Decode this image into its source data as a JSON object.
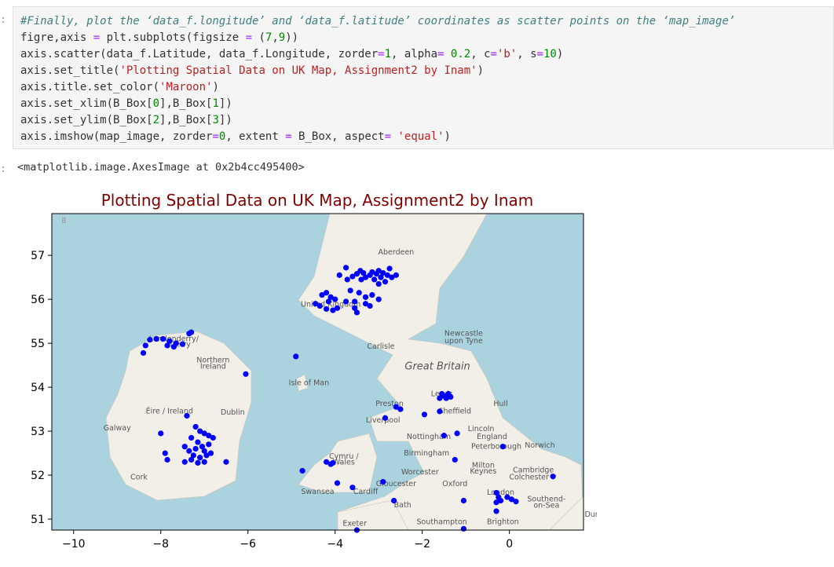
{
  "input_prompt": ":",
  "code_lines": [
    "#Finally, plot the ‘data_f.longitude’ and ‘data_f.latitude’ coordinates as scatter points on the ‘map_image’",
    "figre,axis = plt.subplots(figsize = (7,9))",
    "axis.scatter(data_f.Latitude, data_f.Longitude, zorder=1, alpha= 0.2, c='b', s=10)",
    "axis.set_title('Plotting Spatial Data on UK Map, Assignment2 by Inam')",
    "axis.title.set_color('Maroon')",
    "axis.set_xlim(B_Box[0],B_Box[1])",
    "axis.set_ylim(B_Box[2],B_Box[3])",
    "axis.imshow(map_image, zorder=0, extent = B_Box, aspect= 'equal')"
  ],
  "output_prompt": ":",
  "output_text": "<matplotlib.image.AxesImage at 0x2b4cc495400>",
  "colors": {
    "title": "#800000",
    "points": "#0000ff",
    "sea": "#aad3df",
    "land": "#f2efe9"
  },
  "map_labels": [
    {
      "text": "Aberdeen",
      "lon": -2.6,
      "lat": 57.02
    },
    {
      "text": "United Kingdom",
      "lon": -4.1,
      "lat": 55.83
    },
    {
      "text": "Newcastle",
      "lon": -1.05,
      "lat": 55.17
    },
    {
      "text": "upon Tyne",
      "lon": -1.05,
      "lat": 55.0
    },
    {
      "text": "Carlisle",
      "lon": -2.95,
      "lat": 54.88
    },
    {
      "text": "Londonderry/",
      "lon": -7.7,
      "lat": 55.05
    },
    {
      "text": "Derry",
      "lon": -7.55,
      "lat": 54.92
    },
    {
      "text": "Northern",
      "lon": -6.8,
      "lat": 54.56
    },
    {
      "text": "Ireland",
      "lon": -6.8,
      "lat": 54.42
    },
    {
      "text": "Great Britain",
      "lon": -1.65,
      "lat": 54.4
    },
    {
      "text": "Isle of Man",
      "lon": -4.6,
      "lat": 54.05
    },
    {
      "text": "Leeds",
      "lon": -1.55,
      "lat": 53.8
    },
    {
      "text": "Preston",
      "lon": -2.75,
      "lat": 53.57
    },
    {
      "text": "Sheffield",
      "lon": -1.25,
      "lat": 53.4
    },
    {
      "text": "Hull",
      "lon": -0.2,
      "lat": 53.57
    },
    {
      "text": "Éire / Ireland",
      "lon": -7.8,
      "lat": 53.4
    },
    {
      "text": "Dublin",
      "lon": -6.35,
      "lat": 53.38
    },
    {
      "text": "Liverpool",
      "lon": -2.9,
      "lat": 53.2
    },
    {
      "text": "Galway",
      "lon": -9.0,
      "lat": 53.02
    },
    {
      "text": "Lincoln",
      "lon": -0.65,
      "lat": 53.0
    },
    {
      "text": "Nottingham",
      "lon": -1.85,
      "lat": 52.82
    },
    {
      "text": "England",
      "lon": -0.4,
      "lat": 52.82
    },
    {
      "text": "Birmingham",
      "lon": -1.9,
      "lat": 52.45
    },
    {
      "text": "Peterborough",
      "lon": -0.3,
      "lat": 52.6
    },
    {
      "text": "Cymru /",
      "lon": -3.8,
      "lat": 52.38
    },
    {
      "text": "Wales",
      "lon": -3.8,
      "lat": 52.24
    },
    {
      "text": "Norwich",
      "lon": 0.7,
      "lat": 52.63
    },
    {
      "text": "Milton",
      "lon": -0.6,
      "lat": 52.17
    },
    {
      "text": "Keynes",
      "lon": -0.6,
      "lat": 52.04
    },
    {
      "text": "Cork",
      "lon": -8.5,
      "lat": 51.9
    },
    {
      "text": "Worcester",
      "lon": -2.05,
      "lat": 52.02
    },
    {
      "text": "Cambridge",
      "lon": 0.55,
      "lat": 52.06
    },
    {
      "text": "Colchester",
      "lon": 0.45,
      "lat": 51.9
    },
    {
      "text": "Gloucester",
      "lon": -2.6,
      "lat": 51.75
    },
    {
      "text": "Oxford",
      "lon": -1.25,
      "lat": 51.75
    },
    {
      "text": "Swansea",
      "lon": -4.4,
      "lat": 51.57
    },
    {
      "text": "Cardiff",
      "lon": -3.3,
      "lat": 51.57
    },
    {
      "text": "London",
      "lon": -0.2,
      "lat": 51.55
    },
    {
      "text": "Southend-",
      "lon": 0.85,
      "lat": 51.4
    },
    {
      "text": "on-Sea",
      "lon": 0.85,
      "lat": 51.26
    },
    {
      "text": "Bath",
      "lon": -2.45,
      "lat": 51.27
    },
    {
      "text": "Exeter",
      "lon": -3.55,
      "lat": 50.85
    },
    {
      "text": "Southampton",
      "lon": -1.55,
      "lat": 50.88
    },
    {
      "text": "Brighton",
      "lon": -0.15,
      "lat": 50.88
    },
    {
      "text": "Dunk",
      "lon": 1.95,
      "lat": 51.05
    }
  ],
  "chart_data": {
    "type": "scatter",
    "title": "Plotting Spatial Data on UK Map, Assignment2 by Inam",
    "title_color": "Maroon",
    "xlim": [
      -10.5,
      1.7
    ],
    "ylim": [
      50.75,
      57.95
    ],
    "x_ticks": [
      -10,
      -8,
      -6,
      -4,
      -2,
      0
    ],
    "y_ticks": [
      51,
      52,
      53,
      54,
      55,
      56,
      57
    ],
    "grid": false,
    "point_color": "b",
    "points": [
      {
        "x": -3.75,
        "y": 56.72
      },
      {
        "x": -3.9,
        "y": 56.55
      },
      {
        "x": -3.72,
        "y": 56.45
      },
      {
        "x": -3.6,
        "y": 56.52
      },
      {
        "x": -3.5,
        "y": 56.58
      },
      {
        "x": -3.42,
        "y": 56.65
      },
      {
        "x": -3.35,
        "y": 56.6
      },
      {
        "x": -3.3,
        "y": 56.5
      },
      {
        "x": -3.2,
        "y": 56.55
      },
      {
        "x": -3.15,
        "y": 56.62
      },
      {
        "x": -3.1,
        "y": 56.45
      },
      {
        "x": -3.05,
        "y": 56.58
      },
      {
        "x": -3.0,
        "y": 56.65
      },
      {
        "x": -2.95,
        "y": 56.5
      },
      {
        "x": -2.9,
        "y": 56.6
      },
      {
        "x": -2.85,
        "y": 56.4
      },
      {
        "x": -2.8,
        "y": 56.55
      },
      {
        "x": -2.75,
        "y": 56.7
      },
      {
        "x": -2.7,
        "y": 56.5
      },
      {
        "x": -2.6,
        "y": 56.55
      },
      {
        "x": -3.4,
        "y": 56.45
      },
      {
        "x": -3.0,
        "y": 56.35
      },
      {
        "x": -3.65,
        "y": 56.2
      },
      {
        "x": -3.45,
        "y": 56.15
      },
      {
        "x": -3.3,
        "y": 56.05
      },
      {
        "x": -3.15,
        "y": 56.1
      },
      {
        "x": -3.55,
        "y": 55.95
      },
      {
        "x": -3.3,
        "y": 55.9
      },
      {
        "x": -3.2,
        "y": 55.85
      },
      {
        "x": -3.0,
        "y": 56.0
      },
      {
        "x": -4.3,
        "y": 56.1
      },
      {
        "x": -4.2,
        "y": 56.15
      },
      {
        "x": -4.1,
        "y": 56.05
      },
      {
        "x": -4.0,
        "y": 56.0
      },
      {
        "x": -4.35,
        "y": 55.85
      },
      {
        "x": -4.2,
        "y": 55.78
      },
      {
        "x": -4.45,
        "y": 55.9
      },
      {
        "x": -4.05,
        "y": 55.75
      },
      {
        "x": -3.95,
        "y": 55.8
      },
      {
        "x": -4.15,
        "y": 55.95
      },
      {
        "x": -3.75,
        "y": 55.95
      },
      {
        "x": -3.55,
        "y": 55.8
      },
      {
        "x": -3.5,
        "y": 55.7
      },
      {
        "x": -7.3,
        "y": 55.25
      },
      {
        "x": -7.35,
        "y": 55.22
      },
      {
        "x": -7.5,
        "y": 54.98
      },
      {
        "x": -7.65,
        "y": 55.0
      },
      {
        "x": -7.7,
        "y": 54.92
      },
      {
        "x": -7.8,
        "y": 55.05
      },
      {
        "x": -7.95,
        "y": 55.1
      },
      {
        "x": -8.1,
        "y": 55.1
      },
      {
        "x": -8.25,
        "y": 55.08
      },
      {
        "x": -8.35,
        "y": 54.95
      },
      {
        "x": -8.4,
        "y": 54.78
      },
      {
        "x": -7.85,
        "y": 54.95
      },
      {
        "x": -4.9,
        "y": 54.7
      },
      {
        "x": -6.05,
        "y": 54.3
      },
      {
        "x": -1.55,
        "y": 53.85
      },
      {
        "x": -1.5,
        "y": 53.8
      },
      {
        "x": -1.45,
        "y": 53.75
      },
      {
        "x": -1.35,
        "y": 53.78
      },
      {
        "x": -1.6,
        "y": 53.75
      },
      {
        "x": -1.4,
        "y": 53.85
      },
      {
        "x": -2.6,
        "y": 53.55
      },
      {
        "x": -2.5,
        "y": 53.5
      },
      {
        "x": -1.95,
        "y": 53.38
      },
      {
        "x": -1.6,
        "y": 53.45
      },
      {
        "x": -2.85,
        "y": 53.3
      },
      {
        "x": -1.5,
        "y": 52.9
      },
      {
        "x": -1.2,
        "y": 52.95
      },
      {
        "x": -1.25,
        "y": 52.35
      },
      {
        "x": -7.4,
        "y": 53.35
      },
      {
        "x": -8.0,
        "y": 52.95
      },
      {
        "x": -7.2,
        "y": 53.1
      },
      {
        "x": -7.1,
        "y": 53.0
      },
      {
        "x": -7.0,
        "y": 52.95
      },
      {
        "x": -6.9,
        "y": 52.9
      },
      {
        "x": -6.8,
        "y": 52.85
      },
      {
        "x": -7.3,
        "y": 52.85
      },
      {
        "x": -7.15,
        "y": 52.75
      },
      {
        "x": -7.05,
        "y": 52.65
      },
      {
        "x": -7.2,
        "y": 52.6
      },
      {
        "x": -7.35,
        "y": 52.55
      },
      {
        "x": -7.45,
        "y": 52.65
      },
      {
        "x": -7.0,
        "y": 52.55
      },
      {
        "x": -6.95,
        "y": 52.45
      },
      {
        "x": -7.1,
        "y": 52.4
      },
      {
        "x": -7.3,
        "y": 52.35
      },
      {
        "x": -7.45,
        "y": 52.3
      },
      {
        "x": -7.15,
        "y": 52.28
      },
      {
        "x": -7.0,
        "y": 52.3
      },
      {
        "x": -6.85,
        "y": 52.5
      },
      {
        "x": -6.9,
        "y": 52.7
      },
      {
        "x": -7.25,
        "y": 52.45
      },
      {
        "x": -6.5,
        "y": 52.3
      },
      {
        "x": -7.9,
        "y": 52.5
      },
      {
        "x": -7.85,
        "y": 52.35
      },
      {
        "x": -4.2,
        "y": 52.3
      },
      {
        "x": -4.1,
        "y": 52.25
      },
      {
        "x": -4.05,
        "y": 52.28
      },
      {
        "x": -4.75,
        "y": 52.1
      },
      {
        "x": -3.95,
        "y": 51.82
      },
      {
        "x": -3.6,
        "y": 51.72
      },
      {
        "x": -2.9,
        "y": 51.85
      },
      {
        "x": -2.65,
        "y": 51.42
      },
      {
        "x": -3.5,
        "y": 50.75
      },
      {
        "x": -1.05,
        "y": 51.42
      },
      {
        "x": -1.05,
        "y": 50.78
      },
      {
        "x": -0.3,
        "y": 51.6
      },
      {
        "x": -0.25,
        "y": 51.5
      },
      {
        "x": -0.2,
        "y": 51.42
      },
      {
        "x": -0.05,
        "y": 51.5
      },
      {
        "x": 0.05,
        "y": 51.45
      },
      {
        "x": 0.15,
        "y": 51.4
      },
      {
        "x": -0.3,
        "y": 51.38
      },
      {
        "x": -0.3,
        "y": 51.18
      },
      {
        "x": 1.0,
        "y": 51.97
      },
      {
        "x": -0.15,
        "y": 52.65
      }
    ]
  }
}
